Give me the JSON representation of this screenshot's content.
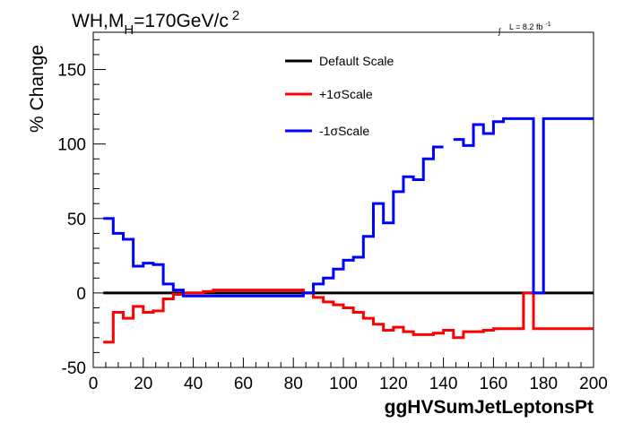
{
  "chart_data": {
    "type": "line",
    "style": "step-histogram",
    "title": {
      "main": "WH,M",
      "sub": "H",
      "rest": "=170GeV/c",
      "sup": "2"
    },
    "lumi": {
      "symbol": "∫",
      "text": "L = 8.2 fb",
      "sup": "-1"
    },
    "xlabel": "ggHVSumJetLeptonsPt",
    "ylabel": "% Change",
    "xlim": [
      0,
      200
    ],
    "ylim": [
      -50,
      175
    ],
    "xticks": [
      0,
      20,
      40,
      60,
      80,
      100,
      120,
      140,
      160,
      180,
      200
    ],
    "yticks": [
      -50,
      0,
      50,
      100,
      150
    ],
    "bin_edges": [
      0,
      4,
      8,
      12,
      16,
      20,
      24,
      28,
      32,
      36,
      40,
      44,
      48,
      52,
      56,
      60,
      64,
      68,
      72,
      76,
      80,
      84,
      88,
      92,
      96,
      100,
      104,
      108,
      112,
      116,
      120,
      124,
      128,
      132,
      136,
      140,
      144,
      148,
      152,
      156,
      160,
      164,
      168,
      172,
      176,
      180,
      184,
      188,
      192,
      196,
      200
    ],
    "series": [
      {
        "name": "Default Scale",
        "color": "#000000",
        "values": [
          null,
          0,
          0,
          0,
          0,
          0,
          0,
          0,
          0,
          0,
          0,
          0,
          0,
          0,
          0,
          0,
          0,
          0,
          0,
          0,
          0,
          0,
          0,
          0,
          0,
          0,
          0,
          0,
          0,
          0,
          0,
          0,
          0,
          0,
          0,
          0,
          0,
          0,
          0,
          0,
          0,
          0,
          0,
          0,
          0,
          0,
          0,
          0,
          0,
          0
        ]
      },
      {
        "name": "+1σScale",
        "color": "#ff0000",
        "values": [
          null,
          -33,
          -13,
          -17,
          -9,
          -13,
          -12,
          -4,
          -1,
          0,
          0,
          1,
          2,
          2,
          2,
          2,
          2,
          2,
          2,
          2,
          2,
          0,
          -3,
          -6,
          -8,
          -10,
          -13,
          -17,
          -21,
          -25,
          -23,
          -26,
          -28,
          -28,
          -27,
          -25,
          -30,
          -26,
          -26,
          -25,
          -24,
          -24,
          -24,
          0,
          -24,
          -24,
          -24,
          -24,
          -24,
          -24
        ]
      },
      {
        "name": "-1σScale",
        "color": "#0000ff",
        "values": [
          null,
          50,
          40,
          36,
          18,
          20,
          19,
          6,
          2,
          -2,
          -2,
          -2,
          -2,
          -2,
          -2,
          -2,
          -2,
          -2,
          -2,
          -2,
          -2,
          0,
          6,
          10,
          16,
          22,
          24,
          38,
          60,
          47,
          68,
          78,
          76,
          90,
          98,
          null,
          103,
          99,
          113,
          107,
          115,
          117,
          117,
          117,
          0,
          117,
          117,
          117,
          117,
          117
        ]
      }
    ],
    "legend": {
      "placement": "top-center"
    }
  }
}
